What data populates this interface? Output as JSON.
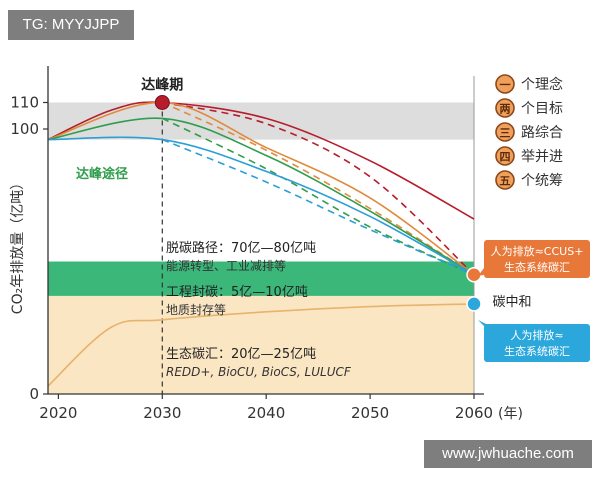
{
  "watermarks": {
    "top": "TG: MYYJJPP",
    "bottom": "www.jwhuache.com"
  },
  "colors": {
    "peak_red": "#b71c2b",
    "orange": "#e08a3c",
    "green_line": "#2e9e4c",
    "cyan_line": "#2c9fd6",
    "grey_band": "#dddddd",
    "green_band": "#3bb879",
    "cream_band": "#fbe6c4",
    "ecological_curve": "#e7b36d",
    "legend_badge": "#f0a05a",
    "orange_box": "#e87839",
    "blue_box": "#2ba7dc"
  },
  "chart_data": {
    "type": "line",
    "xlabel": "(年)",
    "ylabel": "CO₂年排放量（亿吨）",
    "ylim": [
      0,
      120
    ],
    "xlim": [
      2019,
      2060
    ],
    "x_ticks": [
      2020,
      2030,
      2040,
      2050,
      2060
    ],
    "y_ticks": [
      0,
      100,
      110
    ],
    "peak_year": 2030,
    "peak_value": 110,
    "peak_label": "达峰期",
    "pathway_label": "达峰途径",
    "neutral_label": "碳中和",
    "bands": [
      {
        "name": "peak-range",
        "y0": 96,
        "y1": 110
      },
      {
        "name": "engineering",
        "y0": 37,
        "y1": 50
      },
      {
        "name": "ecological",
        "y0": 0,
        "y1": 37
      }
    ],
    "annotations": {
      "pathway": {
        "title": "脱碳路径：70亿—80亿吨",
        "sub": "能源转型、工业减排等"
      },
      "engineering": {
        "title": "工程封碳：5亿—10亿吨",
        "sub": "地质封存等"
      },
      "ecological": {
        "title": "生态碳汇：20亿—25亿吨",
        "sub": "REDD+, BioCU, BioCS, LULUCF"
      }
    },
    "series": [
      {
        "color": "#b71c2b",
        "dash": false,
        "x": [
          2019,
          2025,
          2030,
          2040,
          2050,
          2060
        ],
        "y": [
          96,
          107,
          110,
          104,
          88,
          66
        ]
      },
      {
        "color": "#b71c2b",
        "dash": true,
        "x": [
          2030,
          2040,
          2050,
          2060
        ],
        "y": [
          110,
          102,
          82,
          45
        ]
      },
      {
        "color": "#e08a3c",
        "dash": false,
        "x": [
          2019,
          2030,
          2040,
          2050,
          2060
        ],
        "y": [
          96,
          110,
          93,
          74,
          45
        ]
      },
      {
        "color": "#e08a3c",
        "dash": true,
        "x": [
          2030,
          2040,
          2050,
          2060
        ],
        "y": [
          110,
          92,
          70,
          45
        ]
      },
      {
        "color": "#2e9e4c",
        "dash": false,
        "x": [
          2019,
          2030,
          2040,
          2050,
          2060
        ],
        "y": [
          96,
          104,
          90,
          69,
          45
        ]
      },
      {
        "color": "#2e9e4c",
        "dash": true,
        "x": [
          2030,
          2040,
          2050,
          2060
        ],
        "y": [
          104,
          85,
          63,
          45
        ]
      },
      {
        "color": "#2c9fd6",
        "dash": false,
        "x": [
          2019,
          2030,
          2040,
          2050,
          2060
        ],
        "y": [
          96,
          96,
          84,
          67,
          45
        ]
      },
      {
        "color": "#2c9fd6",
        "dash": true,
        "x": [
          2030,
          2040,
          2050,
          2060
        ],
        "y": [
          96,
          80,
          62,
          45
        ]
      },
      {
        "color": "#e7b36d",
        "dash": false,
        "x": [
          2019,
          2025,
          2030,
          2040,
          2050,
          2060
        ],
        "y": [
          3,
          25,
          28,
          31,
          33,
          34
        ]
      }
    ],
    "endpoints": [
      {
        "x": 2060,
        "y": 45,
        "color": "#e87839",
        "box_lines": [
          "人为排放≈CCUS+",
          "生态系统碳汇"
        ]
      },
      {
        "x": 2060,
        "y": 34,
        "color": "#2ba7dc",
        "box_lines": [
          "人为排放≈",
          "生态系统碳汇"
        ]
      }
    ]
  },
  "legend": {
    "items": [
      {
        "badge": "一",
        "label": "个理念"
      },
      {
        "badge": "两",
        "label": "个目标"
      },
      {
        "badge": "三",
        "label": "路综合"
      },
      {
        "badge": "四",
        "label": "举并进"
      },
      {
        "badge": "五",
        "label": "个统筹"
      }
    ]
  }
}
